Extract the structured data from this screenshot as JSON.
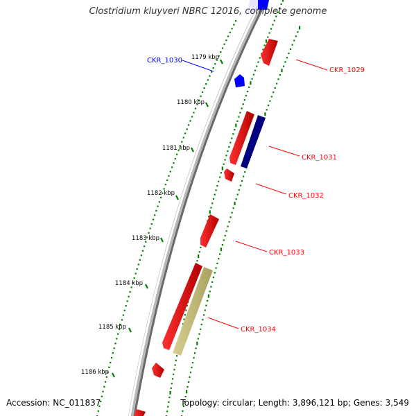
{
  "title": "Clostridium kluyveri NBRC 12016, complete genome",
  "footer": {
    "accession": "Accession: NC_011837",
    "topology": "Topology: circular; Length: 3,896,121 bp; Genes: 3,549"
  },
  "colors": {
    "forward_gene": "#ff0000",
    "reverse_gene": "#0000ff",
    "highlight_dark": "#000080",
    "highlight_tan": "#c8c080",
    "ticks": "#008000",
    "backbone": "#808080"
  },
  "ticks": [
    {
      "label": "1179 kbp",
      "value": 1179
    },
    {
      "label": "1180 kbp",
      "value": 1180
    },
    {
      "label": "1181 kbp",
      "value": 1181
    },
    {
      "label": "1182 kbp",
      "value": 1182
    },
    {
      "label": "1183 kbp",
      "value": 1183
    },
    {
      "label": "1184 kbp",
      "value": 1184
    },
    {
      "label": "1185 kbp",
      "value": 1185
    },
    {
      "label": "1186 kbp",
      "value": 1186
    }
  ],
  "genes": [
    {
      "name": "CKR_1029",
      "strand": "+",
      "color": "red"
    },
    {
      "name": "CKR_1030",
      "strand": "-",
      "color": "blue"
    },
    {
      "name": "CKR_1031",
      "strand": "+",
      "color": "navy"
    },
    {
      "name": "CKR_1032",
      "strand": "+",
      "color": "red"
    },
    {
      "name": "CKR_1033",
      "strand": "+",
      "color": "red"
    },
    {
      "name": "CKR_1034",
      "strand": "+",
      "color": "tan"
    }
  ]
}
